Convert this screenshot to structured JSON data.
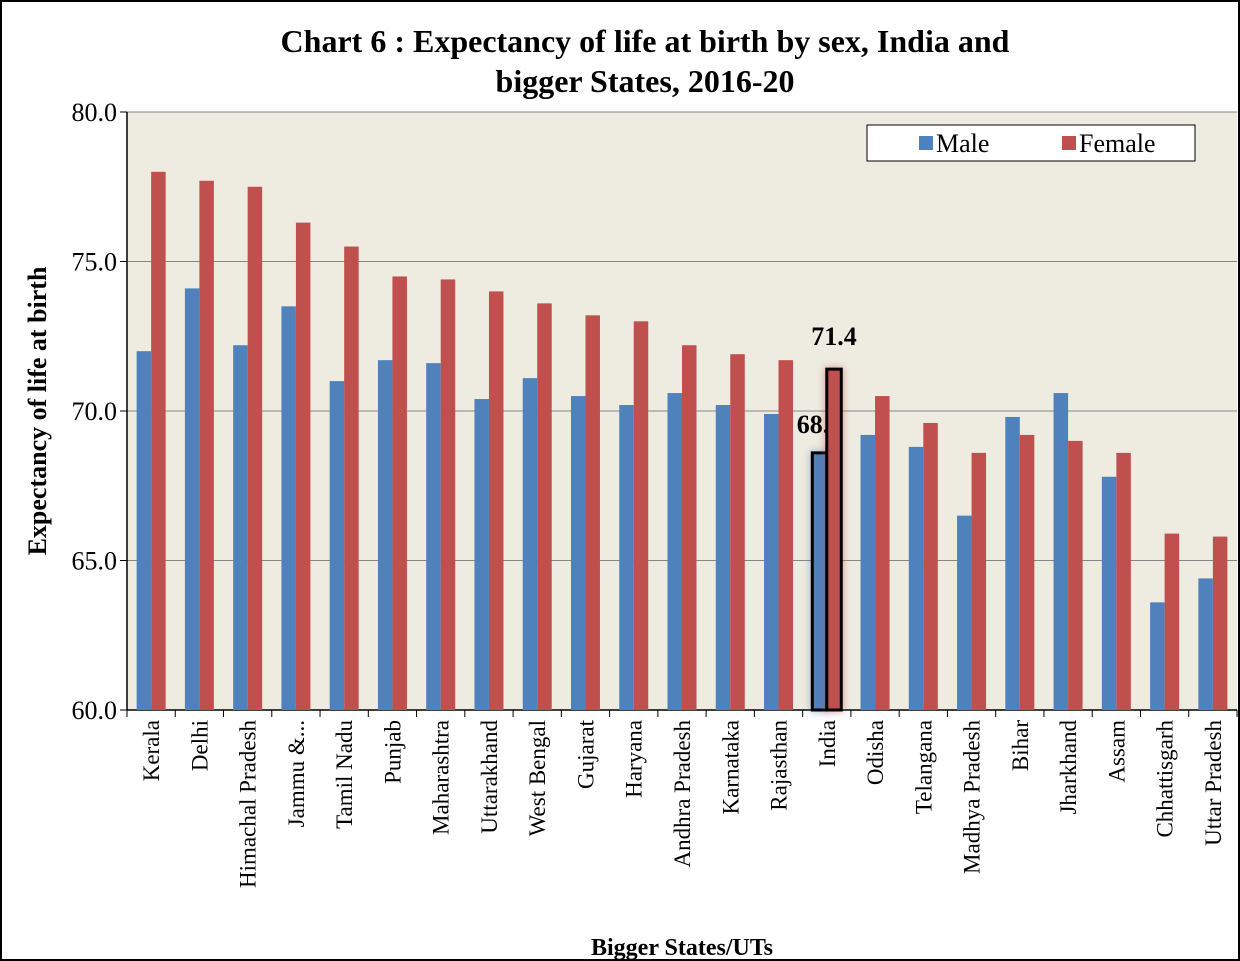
{
  "chart_data": {
    "type": "bar",
    "title": "Chart 6 : Expectancy of life at birth by sex, India and bigger States, 2016-20",
    "x_label": "Bigger States/UTs",
    "y_label": "Expectancy of life at birth",
    "categories": [
      "Kerala",
      "Delhi",
      "Himachal Pradesh",
      "Jammu &...",
      "Tamil Nadu",
      "Punjab",
      "Maharashtra",
      "Uttarakhand",
      "West Bengal",
      "Gujarat",
      "Haryana",
      "Andhra Pradesh",
      "Karnataka",
      "Rajasthan",
      "India",
      "Odisha",
      "Telangana",
      "Madhya Pradesh",
      "Bihar",
      "Jharkhand",
      "Assam",
      "Chhattisgarh",
      "Uttar Pradesh"
    ],
    "series": [
      {
        "name": "Male",
        "color": "#4f81bd",
        "values": [
          72.0,
          74.1,
          72.2,
          73.5,
          71.0,
          71.7,
          71.6,
          70.4,
          71.1,
          70.5,
          70.2,
          70.6,
          70.2,
          69.9,
          68.6,
          69.2,
          68.8,
          66.5,
          69.8,
          70.6,
          67.8,
          63.6,
          64.4
        ],
        "value_labels": [
          null,
          null,
          null,
          null,
          null,
          null,
          null,
          null,
          null,
          null,
          null,
          null,
          null,
          null,
          "68.6",
          null,
          null,
          null,
          null,
          null,
          null,
          null,
          null
        ]
      },
      {
        "name": "Female",
        "color": "#c0504d",
        "values": [
          78.0,
          77.7,
          77.5,
          76.3,
          75.5,
          74.5,
          74.4,
          74.0,
          73.6,
          73.2,
          73.0,
          72.2,
          71.9,
          71.7,
          71.4,
          70.5,
          69.6,
          68.6,
          69.2,
          69.0,
          68.6,
          65.9,
          65.8
        ],
        "value_labels": [
          null,
          null,
          null,
          null,
          null,
          null,
          null,
          null,
          null,
          null,
          null,
          null,
          null,
          null,
          "71.4",
          null,
          null,
          null,
          null,
          null,
          null,
          null,
          null
        ]
      }
    ],
    "ylim": [
      60,
      80
    ],
    "yticks": [
      {
        "value": 60,
        "label": "60.0"
      },
      {
        "value": 65,
        "label": "65.0"
      },
      {
        "value": 70,
        "label": "70.0"
      },
      {
        "value": 75,
        "label": "75.0"
      },
      {
        "value": 80,
        "label": "80.0"
      }
    ],
    "grid": true,
    "legend": "top-right",
    "highlight": "India"
  }
}
